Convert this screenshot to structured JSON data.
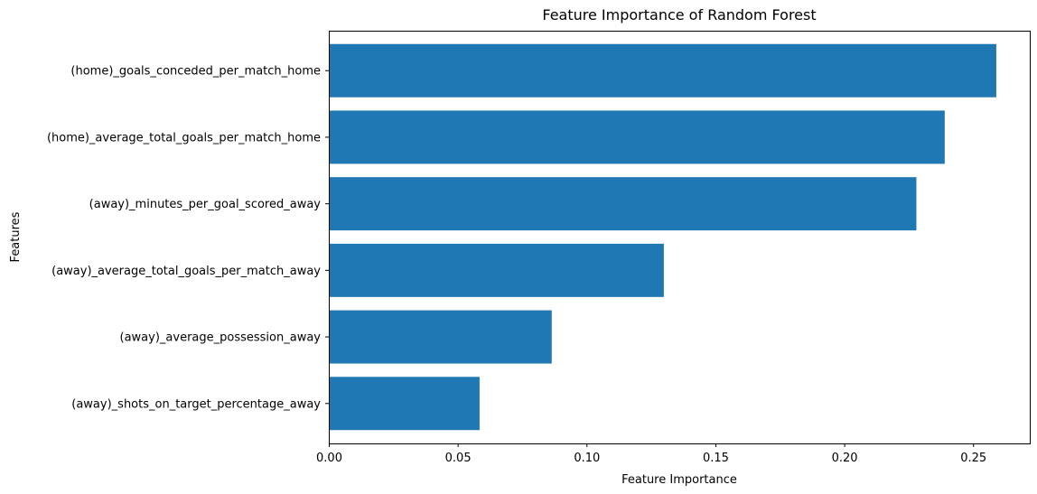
{
  "chart_data": {
    "type": "bar",
    "orientation": "horizontal",
    "title": "Feature Importance of Random Forest",
    "xlabel": "Feature Importance",
    "ylabel": "Features",
    "xlim": [
      0.0,
      0.272
    ],
    "xticks": [
      0.0,
      0.05,
      0.1,
      0.15,
      0.2,
      0.25
    ],
    "xtick_labels": [
      "0.00",
      "0.05",
      "0.10",
      "0.15",
      "0.20",
      "0.25"
    ],
    "categories": [
      "(home)_goals_conceded_per_match_home",
      "(home)_average_total_goals_per_match_home",
      "(away)_minutes_per_goal_scored_away",
      "(away)_average_total_goals_per_match_away",
      "(away)_average_possession_away",
      "(away)_shots_on_target_percentage_away"
    ],
    "values": [
      0.259,
      0.239,
      0.228,
      0.13,
      0.0865,
      0.0585
    ],
    "grid": false,
    "color": "#1f77b4"
  }
}
